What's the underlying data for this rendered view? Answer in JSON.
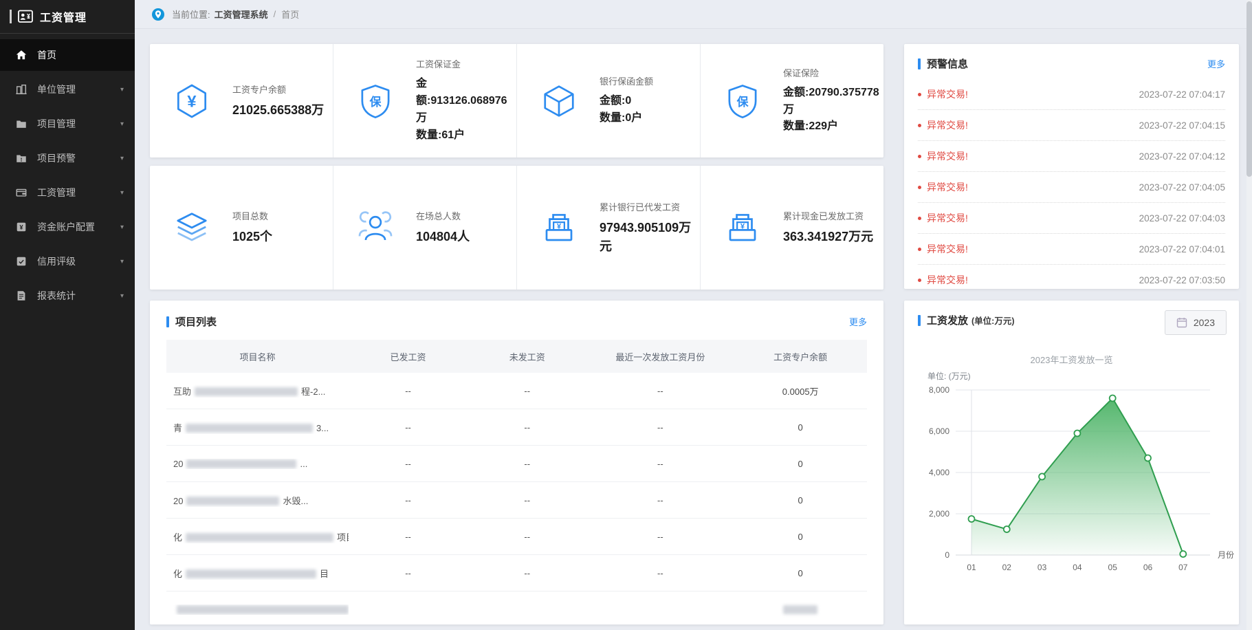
{
  "app": {
    "logo_title": "工资管理"
  },
  "sidebar": {
    "items": [
      {
        "label": "首页",
        "active": true
      },
      {
        "label": "单位管理"
      },
      {
        "label": "项目管理"
      },
      {
        "label": "项目预警"
      },
      {
        "label": "工资管理"
      },
      {
        "label": "资金账户配置"
      },
      {
        "label": "信用评级"
      },
      {
        "label": "报表统计"
      }
    ],
    "caret": "▾"
  },
  "breadcrumb": {
    "prefix": "当前位置:",
    "root": "工资管理系统",
    "separator": "/",
    "current": "首页"
  },
  "stats": {
    "row1": [
      {
        "title": "工资专户余额",
        "value": "21025.665388万",
        "icon": "yen-hexagon-icon"
      },
      {
        "title": "工资保证金",
        "line1": "金额:913126.068976万",
        "line2": "数量:61户",
        "icon": "shield-bao-icon"
      },
      {
        "title": "银行保函金额",
        "line1": "金额:0",
        "line2": "数量:0户",
        "icon": "cube-icon"
      },
      {
        "title": "保证保险",
        "line1": "金额:20790.375778万",
        "line2": "数量:229户",
        "icon": "shield-bao-icon"
      }
    ],
    "row2": [
      {
        "title": "项目总数",
        "value": "1025个",
        "icon": "layers-icon"
      },
      {
        "title": "在场总人数",
        "value": "104804人",
        "icon": "people-group-icon"
      },
      {
        "title": "累计银行已代发工资",
        "value": "97943.905109万元",
        "icon": "cash-tray-icon"
      },
      {
        "title": "累计现金已发放工资",
        "value": "363.341927万元",
        "icon": "cash-tray-icon"
      }
    ]
  },
  "warnings": {
    "title": "预警信息",
    "more_label": "更多",
    "items": [
      {
        "text": "异常交易!",
        "time": "2023-07-22 07:04:17"
      },
      {
        "text": "异常交易!",
        "time": "2023-07-22 07:04:15"
      },
      {
        "text": "异常交易!",
        "time": "2023-07-22 07:04:12"
      },
      {
        "text": "异常交易!",
        "time": "2023-07-22 07:04:05"
      },
      {
        "text": "异常交易!",
        "time": "2023-07-22 07:04:03"
      },
      {
        "text": "异常交易!",
        "time": "2023-07-22 07:04:01"
      },
      {
        "text": "异常交易!",
        "time": "2023-07-22 07:03:50"
      }
    ]
  },
  "project_list": {
    "title": "项目列表",
    "more_label": "更多",
    "columns": [
      "项目名称",
      "已发工资",
      "未发工资",
      "最近一次发放工资月份",
      "工资专户余额"
    ],
    "rows": [
      {
        "name_prefix": "互助",
        "name_blur": 150,
        "name_suffix": "程-2...",
        "paid": "--",
        "unpaid": "--",
        "last_month": "--",
        "balance": "0.0005万",
        "balance_blur": 0
      },
      {
        "name_prefix": "青",
        "name_blur": 185,
        "name_suffix": "3...",
        "paid": "--",
        "unpaid": "--",
        "last_month": "--",
        "balance": "0",
        "balance_blur": 0
      },
      {
        "name_prefix": "20",
        "name_blur": 160,
        "name_suffix": "...",
        "paid": "--",
        "unpaid": "--",
        "last_month": "--",
        "balance": "0",
        "balance_blur": 0
      },
      {
        "name_prefix": "20",
        "name_blur": 135,
        "name_suffix": "水毁...",
        "paid": "--",
        "unpaid": "--",
        "last_month": "--",
        "balance": "0",
        "balance_blur": 0
      },
      {
        "name_prefix": "化",
        "name_blur": 215,
        "name_suffix": "项目",
        "paid": "--",
        "unpaid": "--",
        "last_month": "--",
        "balance": "0",
        "balance_blur": 0
      },
      {
        "name_prefix": "化",
        "name_blur": 190,
        "name_suffix": "目",
        "paid": "--",
        "unpaid": "--",
        "last_month": "--",
        "balance": "0",
        "balance_blur": 0
      },
      {
        "name_prefix": "",
        "name_blur": 250,
        "name_suffix": "",
        "paid": "",
        "unpaid": "",
        "last_month": "",
        "balance": "",
        "balance_blur": 50
      }
    ]
  },
  "salary_panel": {
    "title": "工资发放",
    "title_suffix": "(单位:万元)",
    "year": "2023"
  },
  "chart_data": {
    "type": "area",
    "title": "2023年工资发放一览",
    "ylabel": "单位: (万元)",
    "xlabel": "月份",
    "x": [
      "01",
      "02",
      "03",
      "04",
      "05",
      "06",
      "07"
    ],
    "values": [
      1750,
      1250,
      3800,
      5900,
      7600,
      4700,
      50
    ],
    "yticks": [
      0,
      2000,
      4000,
      6000,
      8000
    ],
    "ylim": [
      0,
      8000
    ],
    "grid": true,
    "legend": "none",
    "line_color": "#2f9e4f",
    "area_color": "#4cb366"
  },
  "colors": {
    "accent_blue": "#2d8cf0",
    "warning_red": "#e04a42",
    "chart_green": "#2f9e4f",
    "sidebar_bg": "#1f1f1f",
    "page_bg": "#e8ebf1"
  }
}
